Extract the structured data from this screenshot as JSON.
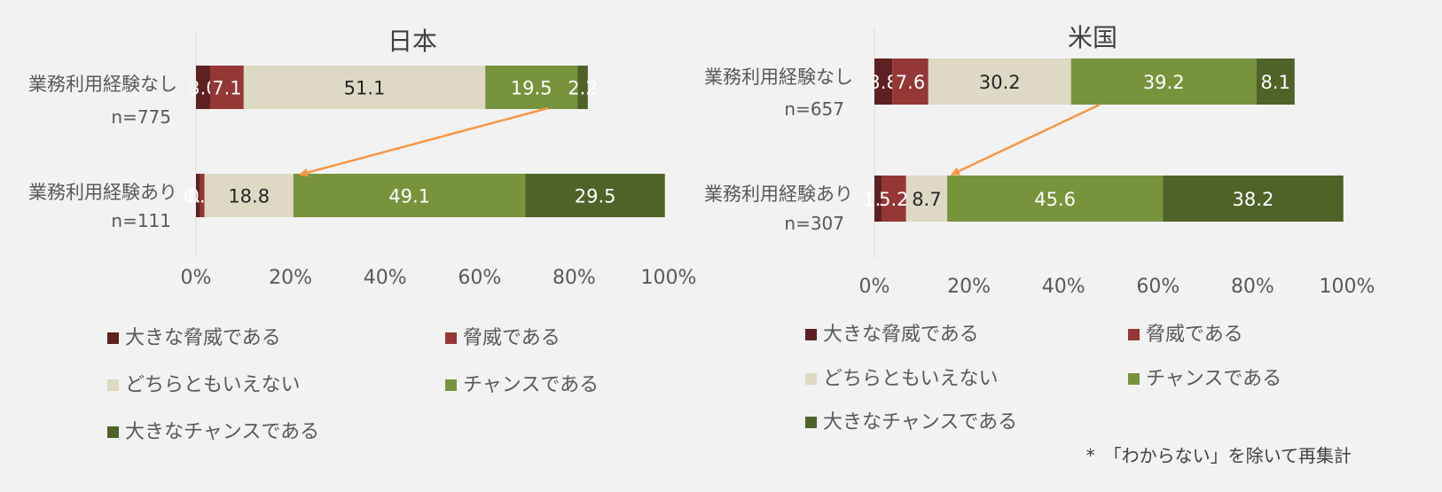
{
  "colors": {
    "大きな脅威である": "#5e2121",
    "脅威である": "#953735",
    "どちらともいえない": "#ddd9c4",
    "チャンスである": "#77933c",
    "大きなチャンスである": "#4f6228",
    "arrow": "#f79646"
  },
  "legend": [
    "大きな脅威である",
    "脅威である",
    "どちらともいえない",
    "チャンスである",
    "大きなチャンスである"
  ],
  "footnote": "*　「わからない」を除いて再集計",
  "chart_data": [
    {
      "type": "bar",
      "stacked": true,
      "orientation": "horizontal",
      "title": "日本",
      "categories": [
        "業務利用経験なし",
        "業務利用経験あり"
      ],
      "sample_sizes": [
        "n=775",
        "n=111"
      ],
      "xticks": [
        "0%",
        "20%",
        "40%",
        "60%",
        "80%",
        "100%"
      ],
      "xlim": [
        0,
        100
      ],
      "series": [
        {
          "name": "大きな脅威である",
          "values": [
            3.0,
            0.9
          ]
        },
        {
          "name": "脅威である",
          "values": [
            7.1,
            0.9
          ]
        },
        {
          "name": "どちらともいえない",
          "values": [
            51.1,
            18.8
          ]
        },
        {
          "name": "チャンスである",
          "values": [
            19.5,
            49.1
          ]
        },
        {
          "name": "大きなチャンスである",
          "values": [
            2.2,
            29.5
          ]
        }
      ],
      "data_labels": [
        [
          "3.0",
          "7.1",
          "51.1",
          "19.5",
          "2.2"
        ],
        [
          "0.9",
          "0.9",
          "18.8",
          "49.1",
          "29.5"
        ]
      ],
      "legend_position": "bottom"
    },
    {
      "type": "bar",
      "stacked": true,
      "orientation": "horizontal",
      "title": "米国",
      "categories": [
        "業務利用経験なし",
        "業務利用経験あり"
      ],
      "sample_sizes": [
        "n=657",
        "n=307"
      ],
      "xticks": [
        "0%",
        "20%",
        "40%",
        "60%",
        "80%",
        "100%"
      ],
      "xlim": [
        0,
        100
      ],
      "series": [
        {
          "name": "大きな脅威である",
          "values": [
            3.8,
            1.5
          ]
        },
        {
          "name": "脅威である",
          "values": [
            7.6,
            5.2
          ]
        },
        {
          "name": "どちらともいえない",
          "values": [
            30.2,
            8.7
          ]
        },
        {
          "name": "チャンスである",
          "values": [
            39.2,
            45.6
          ]
        },
        {
          "name": "大きなチャンスである",
          "values": [
            8.1,
            38.2
          ]
        }
      ],
      "data_labels": [
        [
          "3.8",
          "7.6",
          "30.2",
          "39.2",
          "8.1"
        ],
        [
          "1.5",
          "5.2",
          "8.7",
          "45.6",
          "38.2"
        ]
      ],
      "legend_position": "bottom"
    }
  ]
}
